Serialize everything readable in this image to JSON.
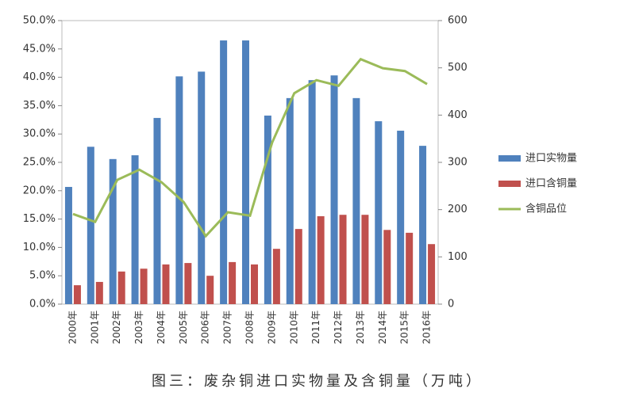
{
  "chart_data": {
    "type": "bar",
    "caption": "图三：废杂铜进口实物量及含铜量（万吨）",
    "categories": [
      "2000年",
      "2001年",
      "2002年",
      "2003年",
      "2004年",
      "2005年",
      "2006年",
      "2007年",
      "2008年",
      "2009年",
      "2010年",
      "2011年",
      "2012年",
      "2013年",
      "2014年",
      "2015年",
      "2016年"
    ],
    "series": [
      {
        "name": "进口实物量",
        "color": "#4f81bd",
        "axis": "y2",
        "values": [
          248,
          333,
          307,
          315,
          394,
          482,
          492,
          558,
          558,
          399,
          436,
          474,
          484,
          436,
          387,
          367,
          335
        ]
      },
      {
        "name": "进口含铜量",
        "color": "#c0504d",
        "axis": "y2",
        "values": [
          40,
          47,
          69,
          75,
          84,
          87,
          60,
          89,
          84,
          117,
          159,
          186,
          189,
          189,
          157,
          151,
          127
        ]
      },
      {
        "name": "含铜品位",
        "color": "#9bbb59",
        "type": "line",
        "values": [
          15.9,
          14.5,
          21.9,
          23.7,
          21.5,
          18.0,
          12.0,
          16.2,
          15.6,
          28.5,
          37.2,
          39.5,
          38.5,
          43.2,
          41.6,
          41.1,
          38.8
        ]
      }
    ],
    "ylim": [
      0,
      50
    ],
    "yticks": [
      {
        "value": 0,
        "label": "0.0%"
      },
      {
        "value": 5,
        "label": "5.0%"
      },
      {
        "value": 10,
        "label": "10.0%"
      },
      {
        "value": 15,
        "label": "15.0%"
      },
      {
        "value": 20,
        "label": "20.0%"
      },
      {
        "value": 25,
        "label": "25.0%"
      },
      {
        "value": 30,
        "label": "30.0%"
      },
      {
        "value": 35,
        "label": "35.0%"
      },
      {
        "value": 40,
        "label": "40.0%"
      },
      {
        "value": 45,
        "label": "45.0%"
      },
      {
        "value": 50,
        "label": "50.0%"
      }
    ],
    "y2lim": [
      0,
      600
    ],
    "y2ticks": [
      0,
      100,
      200,
      300,
      400,
      500,
      600
    ],
    "legend": "right"
  }
}
